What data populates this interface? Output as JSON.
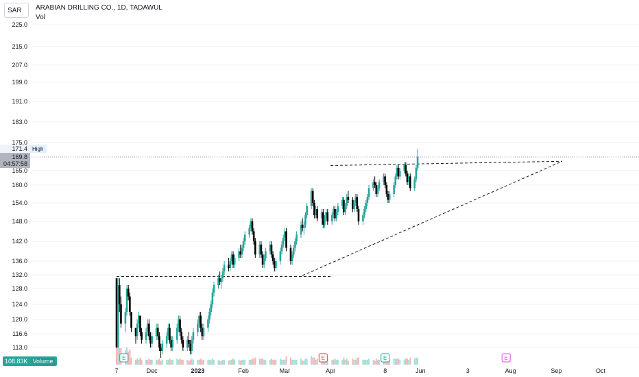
{
  "currency": "SAR",
  "legend": {
    "title": "ARABIAN DRILLING CO., 1D, TADAWUL",
    "sub": "Vol"
  },
  "volume": {
    "value": "108.83K",
    "label": "Volume"
  },
  "colors": {
    "up": "#26a69a",
    "down": "#000000",
    "vol_up": "#a8ddd6",
    "vol_down": "#f2b8b5",
    "grid": "#d1d4dc",
    "trend": "#131722"
  },
  "chart_data": {
    "type": "candlestick",
    "y_ticks": [
      "225.0",
      "215.0",
      "207.0",
      "199.0",
      "191.0",
      "183.0",
      "175.0",
      "165.0",
      "160.0",
      "154.0",
      "148.0",
      "142.0",
      "136.0",
      "132.0",
      "128.0",
      "124.0",
      "120.0",
      "116.6",
      "113.0"
    ],
    "x_ticks": [
      "7",
      "Dec",
      "2023",
      "Feb",
      "Mar",
      "Apr",
      "8",
      "Jun",
      "3",
      "Aug",
      "Sep",
      "Oct"
    ],
    "price_labels": {
      "high_value": "171.4",
      "high_text": "High",
      "last_value": "169.8",
      "countdown": "04:57:58"
    },
    "high": 171.4,
    "last": 169.8,
    "events": [
      "E",
      "E",
      "E",
      "E"
    ],
    "trend_lines": [
      {
        "from": [
          "2022-11-07",
          131.5
        ],
        "to": [
          "2023-04-01",
          131.5
        ]
      },
      {
        "from": [
          "2023-03-13",
          131.8
        ],
        "to": [
          "2023-09-05",
          168.3
        ]
      },
      {
        "from": [
          "2023-04-01",
          166.8
        ],
        "to": [
          "2023-09-05",
          168.3
        ]
      }
    ],
    "candles": [
      [
        "2022-11-07",
        131,
        131,
        113,
        113
      ],
      [
        "2022-11-08",
        113,
        131,
        113,
        129
      ],
      [
        "2022-11-09",
        129,
        131,
        122,
        124
      ],
      [
        "2022-11-10",
        124,
        126,
        118,
        119
      ],
      [
        "2022-11-13",
        119,
        123,
        117,
        122
      ],
      [
        "2022-11-14",
        122,
        129,
        121,
        128
      ],
      [
        "2022-11-15",
        128,
        129,
        125,
        126
      ],
      [
        "2022-11-16",
        126,
        127,
        121,
        122
      ],
      [
        "2022-11-17",
        122,
        122,
        117,
        118
      ],
      [
        "2022-11-20",
        118,
        118,
        114,
        116
      ],
      [
        "2022-11-21",
        116,
        120,
        115,
        119
      ],
      [
        "2022-11-22",
        119,
        122,
        118,
        121
      ],
      [
        "2022-11-23",
        121,
        121,
        116,
        117
      ],
      [
        "2022-11-24",
        117,
        118,
        114,
        115
      ],
      [
        "2022-11-27",
        115,
        118,
        114,
        117
      ],
      [
        "2022-11-28",
        117,
        120,
        116,
        119
      ],
      [
        "2022-11-29",
        119,
        120,
        115,
        116
      ],
      [
        "2022-11-30",
        116,
        117,
        113,
        114
      ],
      [
        "2022-12-01",
        114,
        117,
        113,
        116
      ],
      [
        "2022-12-04",
        116,
        119,
        115,
        118
      ],
      [
        "2022-12-05",
        118,
        119,
        115,
        116
      ],
      [
        "2022-12-06",
        116,
        117,
        112,
        113
      ],
      [
        "2022-12-07",
        113,
        114,
        110,
        112
      ],
      [
        "2022-12-08",
        112,
        115,
        111,
        114
      ],
      [
        "2022-12-11",
        114,
        117,
        113,
        116
      ],
      [
        "2022-12-12",
        116,
        119,
        115,
        118
      ],
      [
        "2022-12-13",
        118,
        119,
        114,
        115
      ],
      [
        "2022-12-14",
        115,
        116,
        112,
        113
      ],
      [
        "2022-12-15",
        113,
        116,
        112,
        115
      ],
      [
        "2022-12-18",
        115,
        119,
        114,
        118
      ],
      [
        "2022-12-19",
        118,
        121,
        117,
        120
      ],
      [
        "2022-12-20",
        120,
        121,
        116,
        117
      ],
      [
        "2022-12-21",
        117,
        118,
        114,
        115
      ],
      [
        "2022-12-22",
        115,
        116,
        112,
        113
      ],
      [
        "2022-12-25",
        113,
        116,
        112,
        115
      ],
      [
        "2022-12-26",
        115,
        117,
        113,
        114
      ],
      [
        "2022-12-27",
        114,
        115,
        111,
        112
      ],
      [
        "2022-12-28",
        112,
        116,
        111,
        115
      ],
      [
        "2022-12-29",
        115,
        118,
        114,
        117
      ],
      [
        "2023-01-01",
        117,
        120,
        116,
        119
      ],
      [
        "2023-01-02",
        119,
        122,
        118,
        121
      ],
      [
        "2023-01-03",
        121,
        122,
        117,
        118
      ],
      [
        "2023-01-04",
        118,
        119,
        115,
        116
      ],
      [
        "2023-01-05",
        116,
        119,
        115,
        118
      ],
      [
        "2023-01-08",
        118,
        121,
        117,
        120
      ],
      [
        "2023-01-09",
        120,
        123,
        119,
        122
      ],
      [
        "2023-01-10",
        122,
        125,
        121,
        124
      ],
      [
        "2023-01-11",
        124,
        128,
        123,
        127
      ],
      [
        "2023-01-12",
        127,
        130,
        126,
        129
      ],
      [
        "2023-01-15",
        129,
        132,
        128,
        131
      ],
      [
        "2023-01-16",
        131,
        133,
        129,
        130
      ],
      [
        "2023-01-17",
        130,
        132,
        128,
        131
      ],
      [
        "2023-01-18",
        131,
        134,
        130,
        133
      ],
      [
        "2023-01-19",
        133,
        136,
        132,
        135
      ],
      [
        "2023-01-22",
        135,
        137,
        133,
        134
      ],
      [
        "2023-01-23",
        134,
        137,
        133,
        136
      ],
      [
        "2023-01-24",
        136,
        139,
        135,
        138
      ],
      [
        "2023-01-25",
        138,
        139,
        134,
        135
      ],
      [
        "2023-01-26",
        135,
        138,
        134,
        137
      ],
      [
        "2023-01-29",
        137,
        140,
        136,
        139
      ],
      [
        "2023-01-30",
        139,
        141,
        137,
        138
      ],
      [
        "2023-01-31",
        138,
        141,
        137,
        140
      ],
      [
        "2023-02-01",
        140,
        143,
        139,
        142
      ],
      [
        "2023-02-02",
        142,
        145,
        141,
        144
      ],
      [
        "2023-02-05",
        144,
        147,
        143,
        146
      ],
      [
        "2023-02-06",
        146,
        149,
        145,
        148
      ],
      [
        "2023-02-07",
        148,
        149,
        144,
        145
      ],
      [
        "2023-02-08",
        145,
        146,
        141,
        142
      ],
      [
        "2023-02-09",
        142,
        143,
        137,
        138
      ],
      [
        "2023-02-12",
        138,
        142,
        137,
        141
      ],
      [
        "2023-02-13",
        141,
        142,
        137,
        138
      ],
      [
        "2023-02-14",
        138,
        139,
        134,
        135
      ],
      [
        "2023-02-15",
        135,
        138,
        134,
        137
      ],
      [
        "2023-02-16",
        137,
        140,
        136,
        139
      ],
      [
        "2023-02-19",
        139,
        142,
        138,
        141
      ],
      [
        "2023-02-20",
        141,
        142,
        137,
        138
      ],
      [
        "2023-02-21",
        138,
        139,
        135,
        136
      ],
      [
        "2023-02-22",
        136,
        137,
        133,
        134
      ],
      [
        "2023-02-23",
        134,
        137,
        133,
        136
      ],
      [
        "2023-02-26",
        136,
        140,
        135,
        139
      ],
      [
        "2023-02-27",
        139,
        142,
        138,
        141
      ],
      [
        "2023-02-28",
        141,
        144,
        140,
        143
      ],
      [
        "2023-03-01",
        143,
        146,
        142,
        145
      ],
      [
        "2023-03-02",
        145,
        146,
        139,
        140
      ],
      [
        "2023-03-05",
        140,
        141,
        135,
        136
      ],
      [
        "2023-03-06",
        136,
        139,
        135,
        138
      ],
      [
        "2023-03-07",
        138,
        141,
        137,
        140
      ],
      [
        "2023-03-08",
        140,
        143,
        139,
        142
      ],
      [
        "2023-03-09",
        142,
        145,
        141,
        144
      ],
      [
        "2023-03-12",
        144,
        148,
        143,
        147
      ],
      [
        "2023-03-13",
        147,
        149,
        145,
        146
      ],
      [
        "2023-03-14",
        146,
        148,
        144,
        147
      ],
      [
        "2023-03-15",
        147,
        151,
        146,
        150
      ],
      [
        "2023-03-16",
        150,
        154,
        149,
        153
      ],
      [
        "2023-03-19",
        153,
        159,
        152,
        158
      ],
      [
        "2023-03-20",
        158,
        159,
        153,
        154
      ],
      [
        "2023-03-21",
        154,
        155,
        149,
        150
      ],
      [
        "2023-03-22",
        150,
        153,
        149,
        152
      ],
      [
        "2023-03-23",
        152,
        153,
        148,
        149
      ],
      [
        "2023-03-26",
        149,
        152,
        147,
        151
      ],
      [
        "2023-03-27",
        151,
        152,
        146,
        147
      ],
      [
        "2023-03-28",
        147,
        150,
        146,
        149
      ],
      [
        "2023-03-29",
        149,
        152,
        148,
        151
      ],
      [
        "2023-03-30",
        151,
        152,
        147,
        148
      ],
      [
        "2023-04-02",
        148,
        151,
        147,
        150
      ],
      [
        "2023-04-03",
        150,
        153,
        149,
        152
      ],
      [
        "2023-04-04",
        152,
        153,
        148,
        149
      ],
      [
        "2023-04-05",
        149,
        152,
        148,
        151
      ],
      [
        "2023-04-06",
        151,
        154,
        150,
        153
      ],
      [
        "2023-04-09",
        153,
        156,
        152,
        155
      ],
      [
        "2023-04-10",
        155,
        156,
        150,
        151
      ],
      [
        "2023-04-11",
        151,
        154,
        150,
        153
      ],
      [
        "2023-04-12",
        153,
        157,
        152,
        156
      ],
      [
        "2023-04-13",
        156,
        158,
        154,
        155
      ],
      [
        "2023-04-16",
        155,
        156,
        151,
        152
      ],
      [
        "2023-04-17",
        152,
        155,
        151,
        154
      ],
      [
        "2023-04-18",
        154,
        157,
        153,
        156
      ],
      [
        "2023-04-19",
        156,
        157,
        151,
        152
      ],
      [
        "2023-04-20",
        152,
        153,
        147,
        148
      ],
      [
        "2023-04-23",
        148,
        151,
        147,
        150
      ],
      [
        "2023-04-24",
        150,
        153,
        149,
        152
      ],
      [
        "2023-04-25",
        152,
        155,
        151,
        154
      ],
      [
        "2023-04-26",
        154,
        157,
        153,
        156
      ],
      [
        "2023-04-27",
        156,
        160,
        155,
        159
      ],
      [
        "2023-04-30",
        159,
        162,
        158,
        161
      ],
      [
        "2023-05-01",
        161,
        163,
        159,
        160
      ],
      [
        "2023-05-02",
        160,
        161,
        156,
        157
      ],
      [
        "2023-05-03",
        157,
        160,
        156,
        159
      ],
      [
        "2023-05-04",
        159,
        162,
        158,
        161
      ],
      [
        "2023-05-07",
        161,
        164,
        160,
        163
      ],
      [
        "2023-05-08",
        163,
        164,
        159,
        160
      ],
      [
        "2023-05-09",
        160,
        161,
        156,
        157
      ],
      [
        "2023-05-10",
        157,
        158,
        154,
        155
      ],
      [
        "2023-05-11",
        155,
        158,
        154,
        157
      ],
      [
        "2023-05-14",
        157,
        161,
        156,
        160
      ],
      [
        "2023-05-15",
        160,
        164,
        159,
        163
      ],
      [
        "2023-05-16",
        163,
        167,
        162,
        166
      ],
      [
        "2023-05-17",
        166,
        167,
        162,
        163
      ],
      [
        "2023-05-18",
        163,
        166,
        162,
        165
      ],
      [
        "2023-05-21",
        165,
        168,
        164,
        167
      ],
      [
        "2023-05-22",
        167,
        168,
        163,
        164
      ],
      [
        "2023-05-23",
        164,
        165,
        160,
        161
      ],
      [
        "2023-05-24",
        161,
        164,
        160,
        163
      ],
      [
        "2023-05-25",
        163,
        164,
        158,
        159
      ],
      [
        "2023-05-28",
        159,
        163,
        158,
        162
      ],
      [
        "2023-05-29",
        162,
        167,
        161,
        166
      ],
      [
        "2023-05-30",
        166,
        171.4,
        165,
        169.8
      ]
    ]
  }
}
